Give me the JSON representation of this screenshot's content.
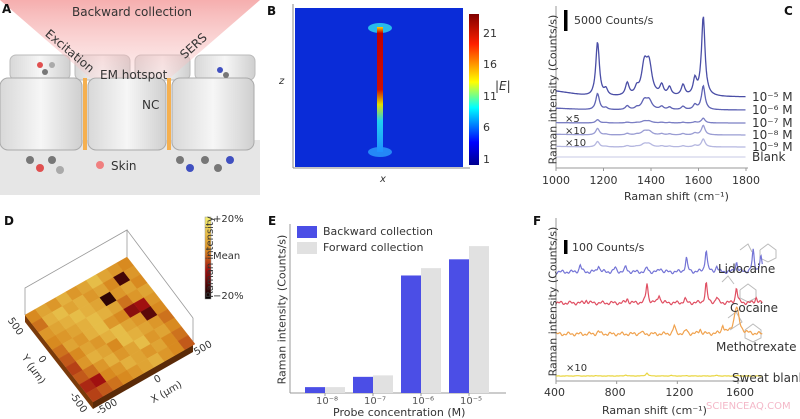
{
  "panels": {
    "a": {
      "label": "A",
      "backward": "Backward collection",
      "excitation": "Excitation",
      "sers": "SERS",
      "hotspot": "EM hotspot",
      "nc": "NC",
      "skin": "Skin"
    },
    "b": {
      "label": "B",
      "xlabel": "x",
      "ylabel": "z",
      "cbar_label": "|E|",
      "cbar_ticks": [
        "21",
        "16",
        "11",
        "6",
        "1"
      ]
    },
    "c": {
      "label": "C"
    },
    "d": {
      "label": "D"
    },
    "e": {
      "label": "E"
    },
    "f": {
      "label": "F"
    }
  },
  "watermark": "SCIENCEAQ.COM",
  "chart_data": [
    {
      "id": "B",
      "type": "heatmap",
      "xlabel": "x",
      "ylabel": "z",
      "colorbar_label": "|E|",
      "colorbar_ticks": [
        21,
        16,
        11,
        6,
        1
      ],
      "colorbar_range": [
        0,
        24
      ],
      "colormap": "jet"
    },
    {
      "id": "C",
      "type": "line",
      "xlabel": "Raman shift (cm⁻¹)",
      "ylabel": "Raman intensity (Counts/s)",
      "xlim": [
        1000,
        1800
      ],
      "xticks": [
        "1000",
        "1200",
        "1400",
        "1600",
        "1800"
      ],
      "scale_bar": "5000 Counts/s",
      "scale_bar_value": 5000,
      "peaks_cm": [
        1175,
        1210,
        1300,
        1340,
        1372,
        1392,
        1445,
        1478,
        1535,
        1585,
        1620
      ],
      "peak_counts": [
        13000,
        1500,
        3000,
        1500,
        7000,
        7000,
        2400,
        2000,
        2600,
        3800,
        19000
      ],
      "series": [
        {
          "name": "10⁻⁵ M",
          "relative_scale": 1.0,
          "multiplier": "",
          "color": "#4a4ea6"
        },
        {
          "name": "10⁻⁶ M",
          "relative_scale": 0.3,
          "multiplier": "",
          "color": "#5f63b4"
        },
        {
          "name": "10⁻⁷ M",
          "relative_scale": 0.06,
          "multiplier": "×5",
          "color": "#7b7fc4"
        },
        {
          "name": "10⁻⁸ M",
          "relative_scale": 0.12,
          "multiplier": "×10",
          "color": "#9a9dd3"
        },
        {
          "name": "10⁻⁹ M",
          "relative_scale": 0.1,
          "multiplier": "×10",
          "color": "#b5b7e0"
        },
        {
          "name": "Blank",
          "relative_scale": 0.0,
          "multiplier": "",
          "color": "#d2d3ea"
        }
      ]
    },
    {
      "id": "D",
      "type": "heatmap",
      "xlabel": "X (μm)",
      "ylabel": "Y (μm)",
      "x_ticks": [
        "-500",
        "0",
        "500"
      ],
      "y_ticks": [
        "-500",
        "0",
        "500"
      ],
      "colorbar_label": "Raman intensity",
      "colorbar_ticks": [
        "+20%",
        "Mean",
        "−20%"
      ],
      "values_percent": [
        [
          4,
          8,
          6,
          10,
          6,
          8,
          12,
          8,
          6,
          4
        ],
        [
          2,
          10,
          12,
          8,
          10,
          6,
          8,
          4,
          -14,
          6
        ],
        [
          6,
          8,
          10,
          12,
          10,
          8,
          -16,
          6,
          8,
          4
        ],
        [
          4,
          6,
          8,
          10,
          12,
          10,
          8,
          2,
          6,
          8
        ],
        [
          2,
          8,
          6,
          10,
          12,
          6,
          4,
          -8,
          -6,
          6
        ],
        [
          0,
          4,
          8,
          6,
          10,
          12,
          8,
          6,
          -12,
          4
        ],
        [
          -2,
          6,
          10,
          8,
          4,
          12,
          10,
          8,
          6,
          2
        ],
        [
          0,
          2,
          6,
          10,
          6,
          8,
          12,
          6,
          8,
          4
        ],
        [
          -4,
          -6,
          4,
          6,
          10,
          8,
          6,
          8,
          4,
          2
        ],
        [
          -2,
          0,
          2,
          4,
          6,
          8,
          10,
          6,
          4,
          0
        ]
      ]
    },
    {
      "id": "E",
      "type": "bar",
      "xlabel": "Probe concentration (M)",
      "ylabel": "Raman intensity (Counts/s)",
      "categories": [
        "10⁻⁸",
        "10⁻⁷",
        "10⁻⁶",
        "10⁻⁵"
      ],
      "ylim": [
        0,
        1.13
      ],
      "legend": "top-left",
      "series": [
        {
          "name": "Backward collection",
          "values": [
            0.04,
            0.11,
            0.8,
            0.91
          ],
          "color": "#4b4ee6"
        },
        {
          "name": "Forward collection",
          "values": [
            0.04,
            0.12,
            0.85,
            1.0
          ],
          "color": "#e1e1e1"
        }
      ]
    },
    {
      "id": "F",
      "type": "line",
      "xlabel": "Raman shift (cm⁻¹)",
      "ylabel": "Raman intensity (Counts/s)",
      "xlim": [
        400,
        1800
      ],
      "xticks": [
        "400",
        "800",
        "1200",
        "1600"
      ],
      "scale_bar": "100 Counts/s",
      "scale_bar_value": 100,
      "series": [
        {
          "name": "Lidocaine",
          "multiplier": "",
          "color": "#7474d6",
          "peaks_cm": [
            560,
            680,
            790,
            860,
            1000,
            1090,
            1260,
            1390,
            1460,
            1590,
            1700,
            1750
          ],
          "peak_counts": [
            50,
            50,
            30,
            35,
            30,
            30,
            100,
            160,
            40,
            70,
            150,
            110
          ]
        },
        {
          "name": "Cocaine",
          "multiplier": "",
          "color": "#e04f62",
          "peaks_cm": [
            600,
            870,
            1000,
            1080,
            1250,
            1390,
            1460,
            1590,
            1720
          ],
          "peak_counts": [
            20,
            30,
            140,
            60,
            30,
            140,
            40,
            110,
            40
          ]
        },
        {
          "name": "Methotrexate",
          "multiplier": "",
          "color": "#f0a24e",
          "peaks_cm": [
            680,
            960,
            1180,
            1260,
            1350,
            1500,
            1590
          ],
          "peak_counts": [
            20,
            15,
            60,
            30,
            35,
            60,
            190
          ]
        },
        {
          "name": "Sweat blank",
          "multiplier": "×10",
          "color": "#e9d53e",
          "peaks_cm": [
            540,
            660,
            860,
            1000,
            1160,
            1260,
            1460,
            1600
          ],
          "peak_counts": [
            20,
            25,
            70,
            220,
            40,
            30,
            50,
            35
          ]
        }
      ]
    }
  ]
}
